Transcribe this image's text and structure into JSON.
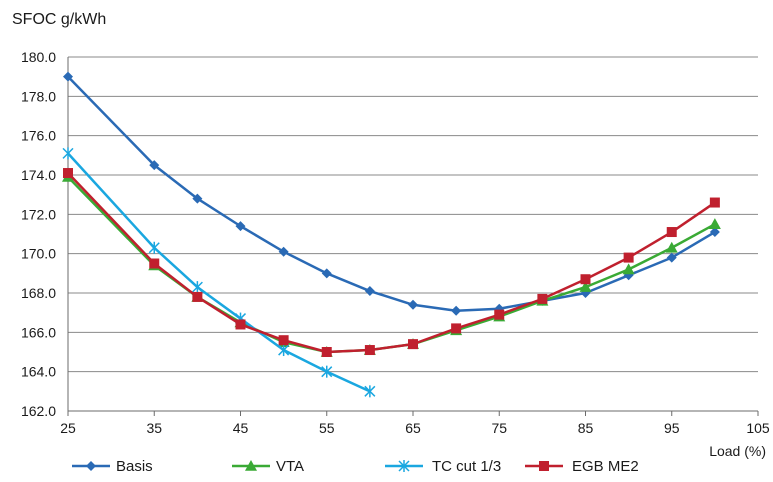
{
  "chart_data": {
    "type": "line",
    "title": "",
    "ylabel": "SFOC g/kWh",
    "xlabel": "Load (%)",
    "xlim": [
      25,
      105
    ],
    "ylim": [
      162,
      180
    ],
    "xticks": [
      25,
      35,
      45,
      55,
      65,
      75,
      85,
      95,
      105
    ],
    "yticks": [
      162.0,
      164.0,
      166.0,
      168.0,
      170.0,
      172.0,
      174.0,
      176.0,
      178.0,
      180.0
    ],
    "xtick_labels": [
      "25",
      "35",
      "45",
      "55",
      "65",
      "75",
      "85",
      "95",
      "105"
    ],
    "ytick_labels": [
      "162.0",
      "164.0",
      "166.0",
      "168.0",
      "170.0",
      "172.0",
      "174.0",
      "176.0",
      "178.0",
      "180.0"
    ],
    "grid": "horizontal",
    "legend_position": "bottom",
    "series": [
      {
        "name": "Basis",
        "color": "#2a6ab5",
        "marker": "diamond",
        "x": [
          25,
          35,
          40,
          45,
          50,
          55,
          60,
          65,
          70,
          75,
          80,
          85,
          90,
          95,
          100
        ],
        "values": [
          179.0,
          174.5,
          172.8,
          171.4,
          170.1,
          169.0,
          168.1,
          167.4,
          167.1,
          167.2,
          167.6,
          168.0,
          168.9,
          169.8,
          171.1
        ]
      },
      {
        "name": "VTA",
        "color": "#3aaa35",
        "marker": "triangle",
        "x": [
          25,
          35,
          40,
          45,
          50,
          55,
          60,
          65,
          70,
          75,
          80,
          85,
          90,
          95,
          100
        ],
        "values": [
          173.9,
          169.4,
          167.8,
          166.5,
          165.5,
          165.0,
          165.1,
          165.4,
          166.1,
          166.8,
          167.6,
          168.3,
          169.2,
          170.3,
          171.5
        ]
      },
      {
        "name": "TC cut 1/3",
        "color": "#1aa7e0",
        "marker": "star",
        "x": [
          25,
          35,
          40,
          45,
          50,
          55,
          60
        ],
        "values": [
          175.1,
          170.3,
          168.3,
          166.7,
          165.1,
          164.0,
          163.0
        ]
      },
      {
        "name": "EGB ME2",
        "color": "#c0202e",
        "marker": "square",
        "x": [
          25,
          35,
          40,
          45,
          50,
          55,
          60,
          65,
          70,
          75,
          80,
          85,
          90,
          95,
          100
        ],
        "values": [
          174.1,
          169.5,
          167.8,
          166.4,
          165.6,
          165.0,
          165.1,
          165.4,
          166.2,
          166.9,
          167.7,
          168.7,
          169.8,
          171.1,
          172.6
        ]
      }
    ]
  }
}
